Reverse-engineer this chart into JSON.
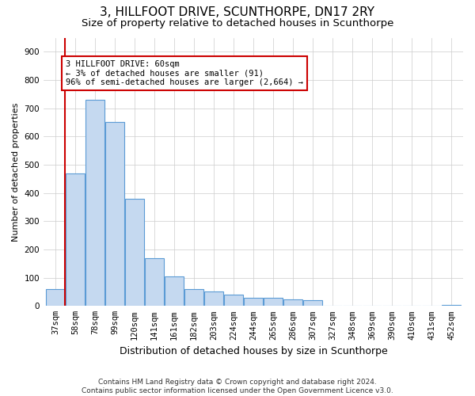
{
  "title": "3, HILLFOOT DRIVE, SCUNTHORPE, DN17 2RY",
  "subtitle": "Size of property relative to detached houses in Scunthorpe",
  "xlabel": "Distribution of detached houses by size in Scunthorpe",
  "ylabel": "Number of detached properties",
  "categories": [
    "37sqm",
    "58sqm",
    "78sqm",
    "99sqm",
    "120sqm",
    "141sqm",
    "161sqm",
    "182sqm",
    "203sqm",
    "224sqm",
    "244sqm",
    "265sqm",
    "286sqm",
    "307sqm",
    "327sqm",
    "348sqm",
    "369sqm",
    "390sqm",
    "410sqm",
    "431sqm",
    "452sqm"
  ],
  "values": [
    60,
    470,
    730,
    650,
    380,
    170,
    105,
    60,
    50,
    40,
    30,
    28,
    22,
    20,
    0,
    0,
    0,
    0,
    0,
    0,
    5
  ],
  "bar_color": "#c5d9f0",
  "bar_edge_color": "#5b9bd5",
  "highlight_line_color": "#cc0000",
  "annotation_line1": "3 HILLFOOT DRIVE: 60sqm",
  "annotation_line2": "← 3% of detached houses are smaller (91)",
  "annotation_line3": "96% of semi-detached houses are larger (2,664) →",
  "annotation_box_color": "#ffffff",
  "annotation_box_edge_color": "#cc0000",
  "ylim": [
    0,
    950
  ],
  "yticks": [
    0,
    100,
    200,
    300,
    400,
    500,
    600,
    700,
    800,
    900
  ],
  "footer_line1": "Contains HM Land Registry data © Crown copyright and database right 2024.",
  "footer_line2": "Contains public sector information licensed under the Open Government Licence v3.0.",
  "bg_color": "#ffffff",
  "grid_color": "#cccccc",
  "title_fontsize": 11,
  "subtitle_fontsize": 9.5,
  "xlabel_fontsize": 9,
  "ylabel_fontsize": 8,
  "tick_fontsize": 7.5,
  "annotation_fontsize": 7.5,
  "footer_fontsize": 6.5
}
